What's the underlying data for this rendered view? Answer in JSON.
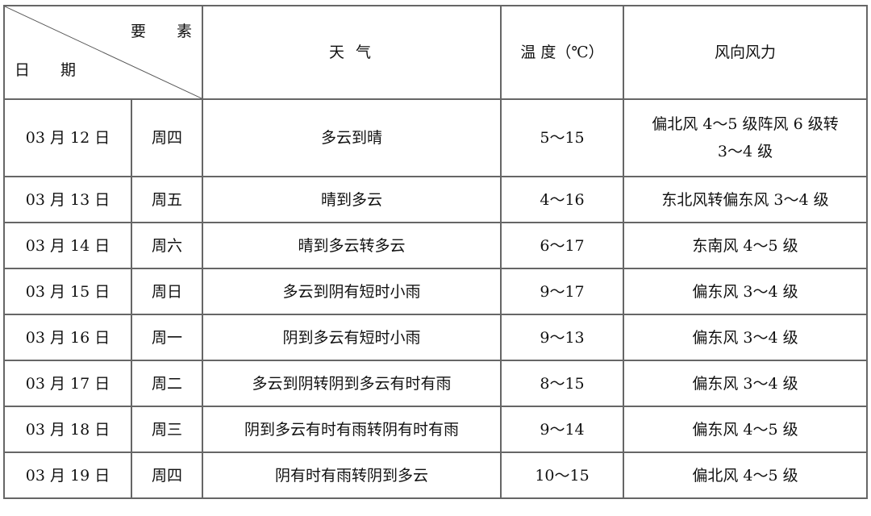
{
  "header": {
    "element_label": "要 素",
    "date_label": "日 期",
    "weather": "天 气",
    "temperature": "温 度（℃）",
    "wind": "风向风力"
  },
  "rows": [
    {
      "date": "03 月 12 日",
      "weekday": "周四",
      "weather": "多云到晴",
      "temp": "5～15",
      "wind": "偏北风 4～5 级阵风 6 级转 3～4 级"
    },
    {
      "date": "03 月 13 日",
      "weekday": "周五",
      "weather": "晴到多云",
      "temp": "4～16",
      "wind": "东北风转偏东风 3～4 级"
    },
    {
      "date": "03 月 14 日",
      "weekday": "周六",
      "weather": "晴到多云转多云",
      "temp": "6～17",
      "wind": "东南风 4～5 级"
    },
    {
      "date": "03 月 15 日",
      "weekday": "周日",
      "weather": "多云到阴有短时小雨",
      "temp": "9～17",
      "wind": "偏东风 3～4 级"
    },
    {
      "date": "03 月 16 日",
      "weekday": "周一",
      "weather": "阴到多云有短时小雨",
      "temp": "9～13",
      "wind": "偏东风 3～4 级"
    },
    {
      "date": "03 月 17 日",
      "weekday": "周二",
      "weather": "多云到阴转阴到多云有时有雨",
      "temp": "8～15",
      "wind": "偏东风 3～4 级"
    },
    {
      "date": "03 月 18 日",
      "weekday": "周三",
      "weather": "阴到多云有时有雨转阴有时有雨",
      "temp": "9～14",
      "wind": "偏东风 4～5 级"
    },
    {
      "date": "03 月 19 日",
      "weekday": "周四",
      "weather": "阴有时有雨转阴到多云",
      "temp": "10～15",
      "wind": "偏北风 4～5 级"
    }
  ]
}
